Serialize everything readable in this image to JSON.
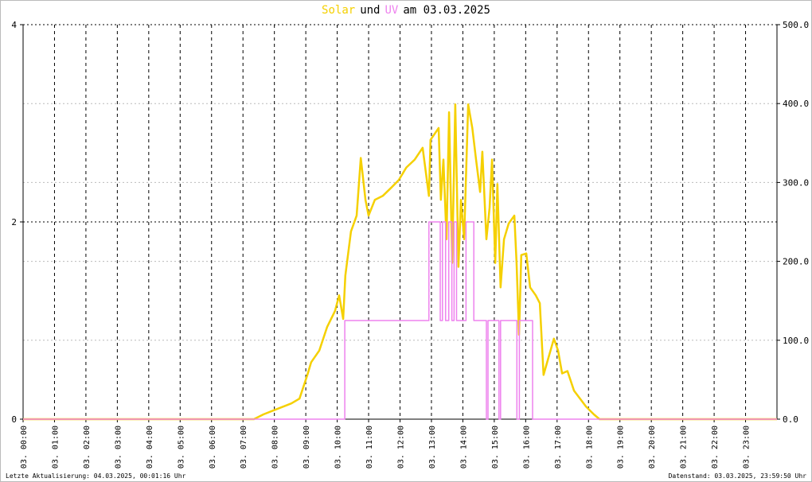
{
  "chart_data": {
    "type": "line",
    "title_join": "und",
    "title_date": "am 03.03.2025",
    "footer_left": "Letzte Aktualisierung: 04.03.2025, 00:01:16 Uhr",
    "footer_right": "Datenstand: 03.03.2025, 23:59:50 Uhr",
    "xlim": [
      0,
      24
    ],
    "xticks": [
      {
        "value": 0,
        "label": "03. 00:00"
      },
      {
        "value": 1,
        "label": "03. 01:00"
      },
      {
        "value": 2,
        "label": "03. 02:00"
      },
      {
        "value": 3,
        "label": "03. 03:00"
      },
      {
        "value": 4,
        "label": "03. 04:00"
      },
      {
        "value": 5,
        "label": "03. 05:00"
      },
      {
        "value": 6,
        "label": "03. 06:00"
      },
      {
        "value": 7,
        "label": "03. 07:00"
      },
      {
        "value": 8,
        "label": "03. 08:00"
      },
      {
        "value": 9,
        "label": "03. 09:00"
      },
      {
        "value": 10,
        "label": "03. 10:00"
      },
      {
        "value": 11,
        "label": "03. 11:00"
      },
      {
        "value": 12,
        "label": "03. 12:00"
      },
      {
        "value": 13,
        "label": "03. 13:00"
      },
      {
        "value": 14,
        "label": "03. 14:00"
      },
      {
        "value": 15,
        "label": "03. 15:00"
      },
      {
        "value": 16,
        "label": "03. 16:00"
      },
      {
        "value": 17,
        "label": "03. 17:00"
      },
      {
        "value": 18,
        "label": "03. 18:00"
      },
      {
        "value": 19,
        "label": "03. 19:00"
      },
      {
        "value": 20,
        "label": "03. 20:00"
      },
      {
        "value": 21,
        "label": "03. 21:00"
      },
      {
        "value": 22,
        "label": "03. 22:00"
      },
      {
        "value": 23,
        "label": "03. 23:00"
      }
    ],
    "ylim": [
      0,
      4
    ],
    "yticks": [
      0,
      2,
      4
    ],
    "y2lim": [
      0,
      500
    ],
    "y2ticks": [
      {
        "value": 0,
        "label": "0.0"
      },
      {
        "value": 100,
        "label": "100.0"
      },
      {
        "value": 200,
        "label": "200.0"
      },
      {
        "value": 300,
        "label": "300.0"
      },
      {
        "value": 400,
        "label": "400.0"
      },
      {
        "value": 500,
        "label": "500.0"
      }
    ],
    "grid": true,
    "series": [
      {
        "name": "Solar",
        "color": "#f5d000",
        "axis": "y2",
        "x": [
          0,
          7.35,
          7.65,
          8.16,
          8.54,
          8.8,
          9.05,
          9.17,
          9.43,
          9.68,
          9.93,
          10.06,
          10.19,
          10.26,
          10.44,
          10.62,
          10.75,
          10.9,
          11.0,
          11.2,
          11.45,
          11.71,
          11.96,
          12.2,
          12.47,
          12.72,
          12.92,
          12.97,
          13.23,
          13.3,
          13.38,
          13.48,
          13.56,
          13.66,
          13.76,
          13.86,
          13.94,
          14.04,
          14.17,
          14.3,
          14.42,
          14.55,
          14.62,
          14.75,
          14.85,
          14.93,
          15.03,
          15.1,
          15.2,
          15.31,
          15.46,
          15.64,
          15.71,
          15.79,
          15.86,
          16.02,
          16.14,
          16.32,
          16.45,
          16.57,
          16.72,
          16.9,
          17.03,
          17.16,
          17.33,
          17.54,
          17.92,
          18.17,
          18.35,
          24
        ],
        "values": [
          0,
          0,
          6,
          14,
          20,
          26,
          56,
          72,
          87,
          117,
          137,
          157,
          127,
          182,
          238,
          258,
          331,
          278,
          258,
          278,
          283,
          293,
          303,
          319,
          329,
          344,
          283,
          354,
          369,
          278,
          329,
          228,
          389,
          198,
          399,
          193,
          278,
          228,
          399,
          369,
          329,
          288,
          339,
          228,
          268,
          329,
          198,
          298,
          167,
          228,
          248,
          258,
          198,
          107,
          208,
          210,
          167,
          157,
          147,
          56,
          77,
          102,
          87,
          58,
          61,
          36,
          16,
          6,
          0,
          0
        ]
      },
      {
        "name": "UV",
        "color": "#ee82ee",
        "axis": "y",
        "x": [
          0,
          10.24,
          10.24,
          12.92,
          12.92,
          13.28,
          13.28,
          13.35,
          13.35,
          13.45,
          13.45,
          13.55,
          13.55,
          13.65,
          13.65,
          13.72,
          13.72,
          13.8,
          13.8,
          14.1,
          14.1,
          14.35,
          14.35,
          14.75,
          14.75,
          14.8,
          14.8,
          15.15,
          15.15,
          15.2,
          15.2,
          15.72,
          15.72,
          15.8,
          15.8,
          16.22,
          16.22,
          24
        ],
        "values": [
          0,
          0,
          1,
          1,
          2,
          2,
          1,
          1,
          2,
          2,
          1,
          1,
          2,
          2,
          1,
          1,
          2,
          2,
          1,
          1,
          2,
          2,
          1,
          1,
          0,
          0,
          1,
          1,
          0,
          0,
          1,
          1,
          0,
          0,
          1,
          1,
          0,
          0
        ]
      }
    ]
  }
}
